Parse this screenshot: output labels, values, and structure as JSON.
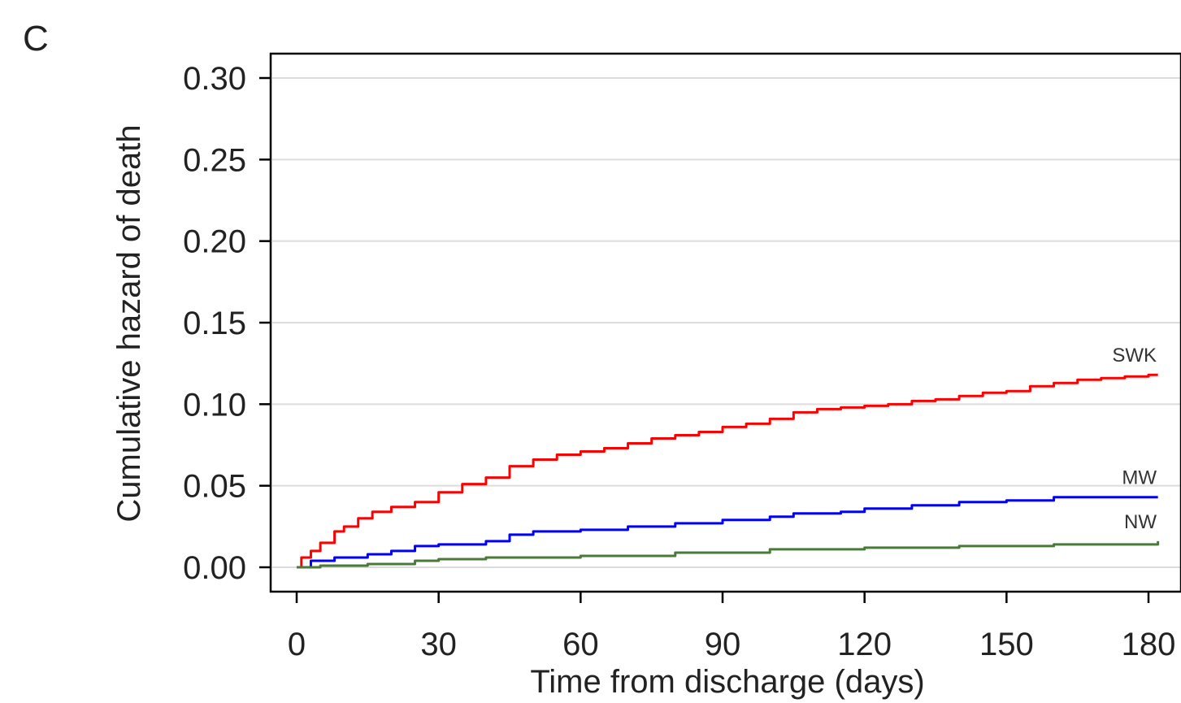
{
  "panel_label": "C",
  "colors": {
    "SWK": "#ff0000",
    "MW": "#0000ff",
    "NW": "#4a7a3a",
    "grid": "#dcdcdc",
    "axis": "#000000"
  },
  "chart_data": {
    "type": "line",
    "title": "",
    "xlabel": "Time from discharge (days)",
    "ylabel": "Cumulative hazard of death",
    "xlim": [
      0,
      180
    ],
    "ylim": [
      0,
      0.3
    ],
    "xticks": [
      0,
      30,
      60,
      90,
      120,
      150,
      180
    ],
    "xtick_labels": [
      "0",
      "30",
      "60",
      "90",
      "120",
      "150",
      "180"
    ],
    "yticks": [
      0,
      0.05,
      0.1,
      0.15,
      0.2,
      0.25,
      0.3
    ],
    "ytick_labels": [
      "0.00",
      "0.05",
      "0.10",
      "0.15",
      "0.20",
      "0.25",
      "0.30"
    ],
    "grid": true,
    "legend": "none (series labeled at line ends)",
    "series": [
      {
        "name": "SWK",
        "x": [
          0,
          1,
          3,
          5,
          8,
          10,
          13,
          16,
          20,
          25,
          30,
          35,
          40,
          45,
          50,
          55,
          60,
          65,
          70,
          75,
          80,
          85,
          90,
          95,
          100,
          105,
          110,
          115,
          120,
          125,
          130,
          135,
          140,
          145,
          150,
          155,
          160,
          165,
          170,
          175,
          180,
          182
        ],
        "y": [
          0,
          0.006,
          0.01,
          0.015,
          0.022,
          0.025,
          0.03,
          0.034,
          0.037,
          0.04,
          0.046,
          0.051,
          0.055,
          0.062,
          0.066,
          0.069,
          0.071,
          0.073,
          0.076,
          0.079,
          0.081,
          0.083,
          0.086,
          0.088,
          0.091,
          0.095,
          0.097,
          0.098,
          0.099,
          0.1,
          0.102,
          0.103,
          0.105,
          0.107,
          0.108,
          0.111,
          0.113,
          0.115,
          0.116,
          0.117,
          0.118,
          0.118
        ]
      },
      {
        "name": "MW",
        "x": [
          0,
          3,
          8,
          15,
          20,
          25,
          30,
          40,
          45,
          50,
          60,
          70,
          80,
          90,
          100,
          105,
          115,
          120,
          130,
          140,
          150,
          155,
          160,
          170,
          182
        ],
        "y": [
          0,
          0.004,
          0.006,
          0.008,
          0.01,
          0.013,
          0.014,
          0.016,
          0.02,
          0.022,
          0.023,
          0.025,
          0.027,
          0.029,
          0.031,
          0.033,
          0.034,
          0.036,
          0.038,
          0.04,
          0.041,
          0.041,
          0.043,
          0.043,
          0.043
        ]
      },
      {
        "name": "NW",
        "x": [
          0,
          5,
          15,
          25,
          30,
          40,
          60,
          80,
          100,
          120,
          140,
          160,
          182
        ],
        "y": [
          0,
          0.001,
          0.002,
          0.004,
          0.005,
          0.006,
          0.007,
          0.009,
          0.011,
          0.012,
          0.013,
          0.014,
          0.016
        ]
      }
    ]
  }
}
